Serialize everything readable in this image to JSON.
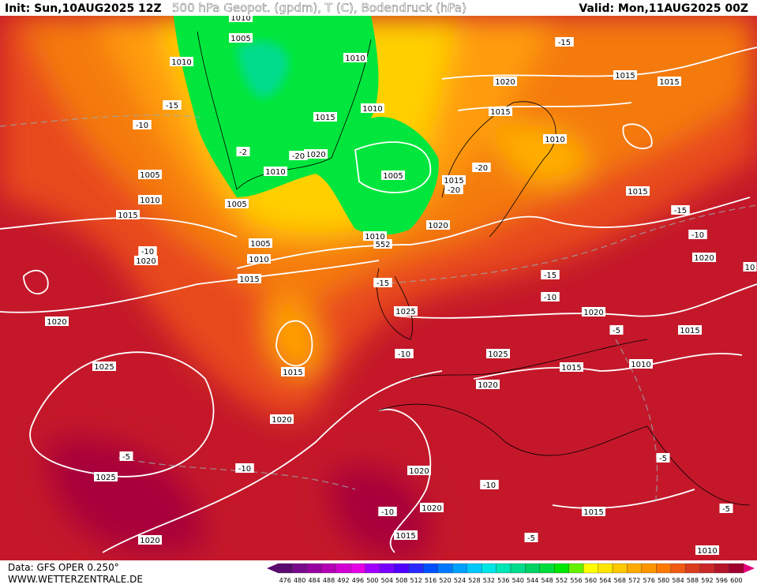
{
  "header": {
    "init": "Init: Sun,10AUG2025 12Z",
    "title": "500 hPa Geopot. (gpdm), T (C), Bodendruck (hPa)",
    "valid": "Valid: Mon,11AUG2025 00Z"
  },
  "map_labels": [
    "1010",
    "1005",
    "1010",
    "-15",
    "-10",
    "1005",
    "1010",
    "1015",
    "-10",
    "1020",
    "1020",
    "1025",
    "1010",
    "1010",
    "1015",
    "1020",
    "-20",
    "-2",
    "1010",
    "1005",
    "1005",
    "1010",
    "1015",
    "1005",
    "1010",
    "552",
    "1020",
    "1015",
    "-20",
    "-20",
    "1020",
    "1015",
    "-15",
    "1015",
    "1015",
    "1010",
    "1015",
    "-15",
    "-10",
    "1020",
    "10",
    "-15",
    "-15",
    "-10",
    "1025",
    "1020",
    "-5",
    "1015",
    "-10",
    "1025",
    "1015",
    "1010",
    "1020",
    "1015",
    "1020",
    "-5",
    "-10",
    "1025",
    "1020",
    "-10",
    "1020",
    "-10",
    "1015",
    "-5",
    "-5",
    "1015",
    "-5",
    "1020",
    "1010"
  ],
  "footer": {
    "data": "Data: GFS OPER 0.250°",
    "site": "WWW.WETTERZENTRALE.DE"
  },
  "legend": {
    "levels": [
      476,
      480,
      484,
      488,
      492,
      496,
      500,
      504,
      508,
      512,
      516,
      520,
      524,
      528,
      532,
      536,
      540,
      544,
      548,
      552,
      556,
      560,
      564,
      568,
      572,
      576,
      580,
      584,
      588,
      592,
      596,
      600
    ],
    "colors": [
      "#5a0a6e",
      "#780a8c",
      "#9600a0",
      "#b400b4",
      "#d200d2",
      "#e600e6",
      "#a000ff",
      "#7800ff",
      "#5000ff",
      "#2828ff",
      "#0050ff",
      "#0078ff",
      "#00a0ff",
      "#00c8ff",
      "#00e6e6",
      "#00e6b4",
      "#00dc8c",
      "#00d264",
      "#00dc3c",
      "#00e600",
      "#64f000",
      "#ffff00",
      "#ffe600",
      "#ffc800",
      "#ffaa00",
      "#ff9600",
      "#ff7800",
      "#f05a14",
      "#dc3c1e",
      "#c82828",
      "#b41428",
      "#a0002d"
    ]
  }
}
